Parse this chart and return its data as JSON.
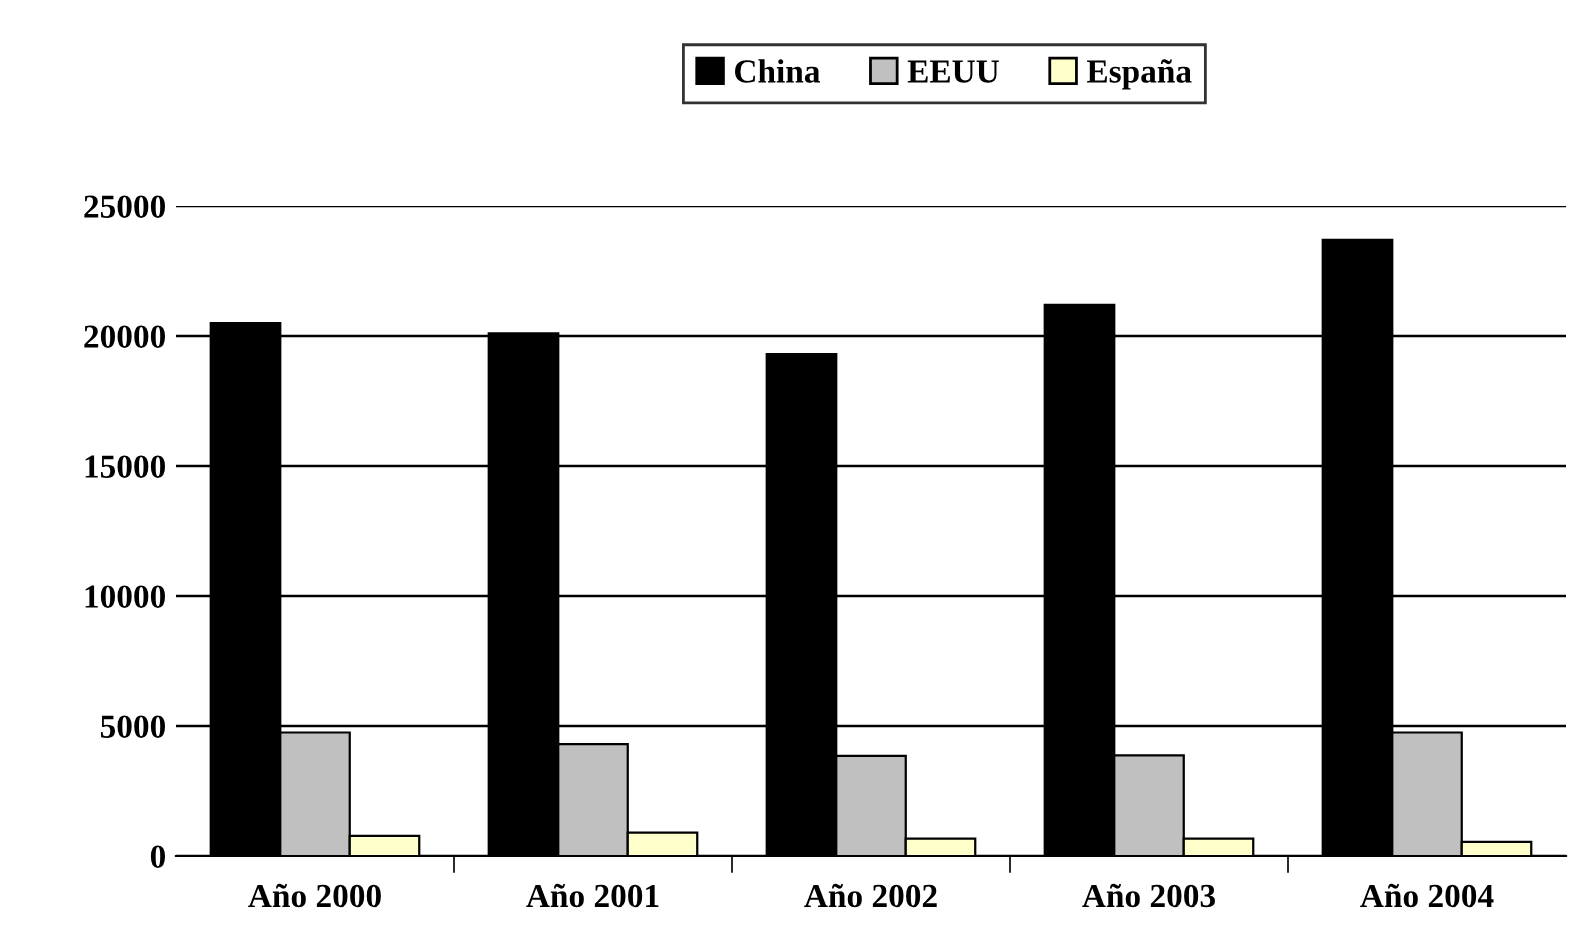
{
  "chart_data": {
    "type": "bar",
    "categories": [
      "Año 2000",
      "Año 2001",
      "Año 2002",
      "Año 2003",
      "Año 2004"
    ],
    "series": [
      {
        "name": "China",
        "color": "#000000",
        "values": [
          20500,
          20100,
          19300,
          21200,
          23700
        ]
      },
      {
        "name": "EEUU",
        "color": "#c0c0c0",
        "values": [
          4750,
          4300,
          3850,
          3870,
          4750
        ]
      },
      {
        "name": "España",
        "color": "#ffffcc",
        "values": [
          770,
          900,
          670,
          670,
          540
        ]
      }
    ],
    "ylim": [
      0,
      25000
    ],
    "yticks": [
      0,
      5000,
      10000,
      15000,
      20000,
      25000
    ],
    "grid": "y",
    "legend": "top"
  }
}
